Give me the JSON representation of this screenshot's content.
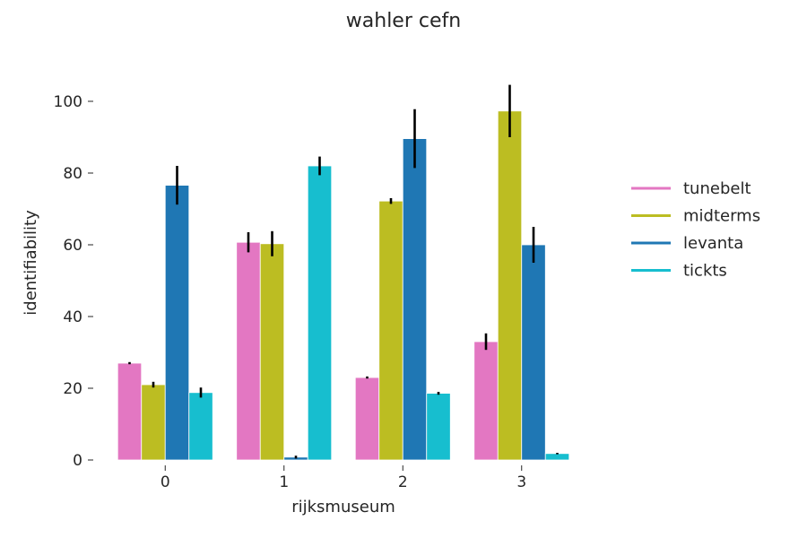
{
  "chart_data": {
    "type": "bar",
    "title": "wahler cefn",
    "xlabel": "rijksmuseum",
    "ylabel": "identifiability",
    "categories": [
      "0",
      "1",
      "2",
      "3"
    ],
    "ylim": [
      0,
      112
    ],
    "yticks": [
      0,
      20,
      40,
      60,
      80,
      100
    ],
    "grid": false,
    "legend_position": "right",
    "series": [
      {
        "name": "tunebelt",
        "color": "#e377c2",
        "values": [
          27,
          60.7,
          23,
          33
        ],
        "errors": [
          0.3,
          2.8,
          0.3,
          2.3
        ]
      },
      {
        "name": "midterms",
        "color": "#bcbd22",
        "values": [
          21,
          60.3,
          72.2,
          97.3
        ],
        "errors": [
          0.8,
          3.5,
          0.8,
          7.3
        ]
      },
      {
        "name": "levanta",
        "color": "#1f77b4",
        "values": [
          76.6,
          0.8,
          89.6,
          60
        ],
        "errors": [
          5.4,
          0.4,
          8.2,
          5
        ]
      },
      {
        "name": "tickts",
        "color": "#17becf",
        "values": [
          18.8,
          82,
          18.6,
          1.8
        ],
        "errors": [
          1.4,
          2.6,
          0.4,
          0.2
        ]
      }
    ]
  }
}
